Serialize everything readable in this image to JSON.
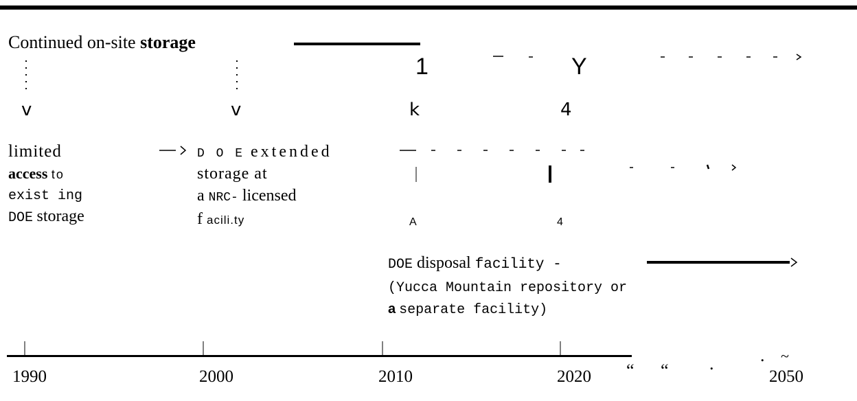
{
  "header": {
    "storage_label": "Continued on-site",
    "storage_label_bold": "storage"
  },
  "top_marks": [
    "1",
    "Y"
  ],
  "arrow_labels": [
    "v",
    "v",
    "k",
    "4"
  ],
  "stage_1": {
    "line_1": "limited",
    "line_2_bold": "access",
    "line_2": "to",
    "line_3": "exist ing",
    "line_4_prefix": "DOE",
    "line_4": "storage"
  },
  "stage_2": {
    "line_1_prefix": "D O E",
    "line_1": "extended",
    "line_2": "storage at",
    "line_3_prefix": "a",
    "line_3_mid": "NRC-",
    "line_3": "licensed",
    "line_4_prefix": "f",
    "line_4": "acili.ty"
  },
  "middle_marks": [
    "A",
    "4"
  ],
  "stage_3": {
    "title_prefix": "DOE",
    "title_bold": "disposal",
    "title": "facility -",
    "line_2": "(Yucca Mountain repository or",
    "line_3_bold": "a",
    "line_3": "separate facility)"
  },
  "timeline": {
    "years": [
      "1990",
      "2000",
      "2010",
      "2020",
      "2050"
    ],
    "gap_marks": [
      "“",
      "“",
      ".",
      "."
    ],
    "tilde": "~"
  }
}
